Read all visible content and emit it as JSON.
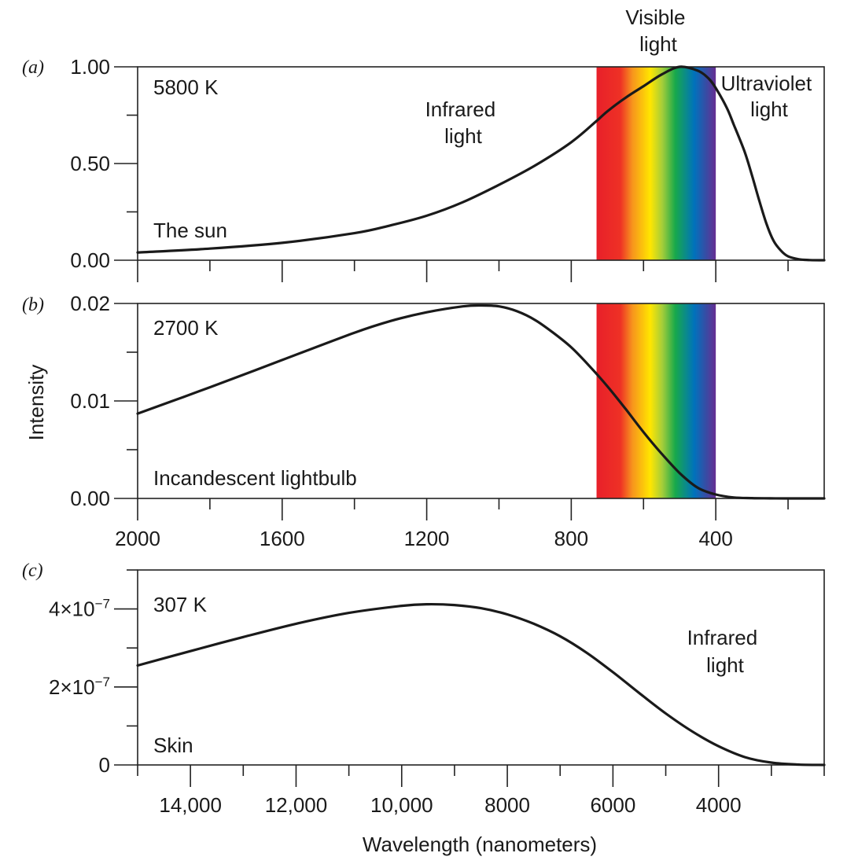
{
  "chart_data": [
    {
      "panel_label": "(a)",
      "type": "line",
      "temperature_label": "5800 K",
      "source_label": "The sun",
      "annotations": [
        {
          "text": [
            "Infrared",
            "light"
          ]
        },
        {
          "text": [
            "Visible",
            "light"
          ]
        },
        {
          "text": [
            "Ultraviolet",
            "light"
          ]
        }
      ],
      "x_reversed": true,
      "xlim": [
        2000,
        100
      ],
      "ylim": [
        0,
        1.0
      ],
      "ytick_labels": [
        "0.00",
        "0.50",
        "1.00"
      ],
      "yticks": [
        0,
        0.5,
        1.0
      ],
      "xticks": [
        2000,
        1600,
        1200,
        800,
        400
      ],
      "spectrum_band": [
        730,
        400
      ],
      "series": [
        {
          "x": [
            2000,
            1800,
            1600,
            1400,
            1300,
            1200,
            1100,
            1000,
            900,
            800,
            730,
            700,
            650,
            600,
            550,
            500,
            450,
            420,
            400,
            370,
            350,
            320,
            300,
            280,
            260,
            240,
            220,
            200,
            170,
            140,
            100
          ],
          "y": [
            0.04,
            0.06,
            0.09,
            0.14,
            0.18,
            0.23,
            0.3,
            0.39,
            0.49,
            0.61,
            0.72,
            0.77,
            0.84,
            0.9,
            0.96,
            1.0,
            0.98,
            0.94,
            0.89,
            0.79,
            0.7,
            0.56,
            0.44,
            0.31,
            0.19,
            0.1,
            0.05,
            0.02,
            0.005,
            0.001,
            0.0
          ]
        }
      ]
    },
    {
      "panel_label": "(b)",
      "type": "line",
      "temperature_label": "2700 K",
      "source_label": "Incandescent lightbulb",
      "x_reversed": true,
      "xlim": [
        2000,
        100
      ],
      "ylim": [
        0,
        0.02
      ],
      "ytick_labels": [
        "0.00",
        "0.01",
        "0.02"
      ],
      "yticks": [
        0,
        0.01,
        0.02
      ],
      "xticks": [
        2000,
        1600,
        1200,
        800,
        400
      ],
      "xtick_labels": [
        "2000",
        "1600",
        "1200",
        "800",
        "400"
      ],
      "spectrum_band": [
        730,
        400
      ],
      "series": [
        {
          "x": [
            2000,
            1800,
            1600,
            1400,
            1300,
            1200,
            1100,
            1050,
            1000,
            950,
            900,
            850,
            800,
            750,
            700,
            650,
            600,
            550,
            500,
            450,
            400,
            350,
            300,
            250,
            200,
            100
          ],
          "y": [
            0.0087,
            0.0114,
            0.0142,
            0.017,
            0.0182,
            0.0191,
            0.0197,
            0.0198,
            0.0197,
            0.0192,
            0.0183,
            0.017,
            0.0155,
            0.0136,
            0.0115,
            0.0092,
            0.0068,
            0.0046,
            0.0026,
            0.0011,
            0.0004,
            0.0001,
            3e-05,
            1e-05,
            0.0,
            0.0
          ]
        }
      ]
    },
    {
      "panel_label": "(c)",
      "type": "line",
      "temperature_label": "307 K",
      "source_label": "Skin",
      "annotations": [
        {
          "text": [
            "Infrared",
            "light"
          ]
        }
      ],
      "x_reversed": true,
      "xlim": [
        15000,
        2000
      ],
      "ylim": [
        0,
        5e-07
      ],
      "ytick_labels": [
        "0",
        "2×10⁻⁷",
        "4×10⁻⁷"
      ],
      "yticks": [
        0,
        2e-07,
        4e-07
      ],
      "xticks": [
        14000,
        12000,
        10000,
        8000,
        6000,
        4000
      ],
      "xtick_labels": [
        "14,000",
        "12,000",
        "10,000",
        "8000",
        "6000",
        "4000"
      ],
      "xlabel": "Wavelength (nanometers)",
      "series": [
        {
          "x": [
            15000,
            14000,
            13000,
            12000,
            11000,
            10000,
            9500,
            9000,
            8500,
            8000,
            7500,
            7000,
            6500,
            6000,
            5500,
            5000,
            4500,
            4000,
            3500,
            3000,
            2500,
            2000
          ],
          "y": [
            2.55e-07,
            2.92e-07,
            3.28e-07,
            3.62e-07,
            3.9e-07,
            4.08e-07,
            4.12e-07,
            4.1e-07,
            4.02e-07,
            3.86e-07,
            3.62e-07,
            3.3e-07,
            2.88e-07,
            2.38e-07,
            1.84e-07,
            1.32e-07,
            8.6e-08,
            4.8e-08,
            2e-08,
            6e-09,
            1e-09,
            0.0
          ]
        }
      ]
    }
  ],
  "shared": {
    "ylabel": "Intensity"
  },
  "colors": {
    "line": "#1a1a1a",
    "spectrum": [
      "#e8202a",
      "#f04a1f",
      "#f7941d",
      "#ffd200",
      "#fff000",
      "#a6ce39",
      "#39b54a",
      "#00a651",
      "#0072bc",
      "#2e3192",
      "#662d91"
    ]
  }
}
